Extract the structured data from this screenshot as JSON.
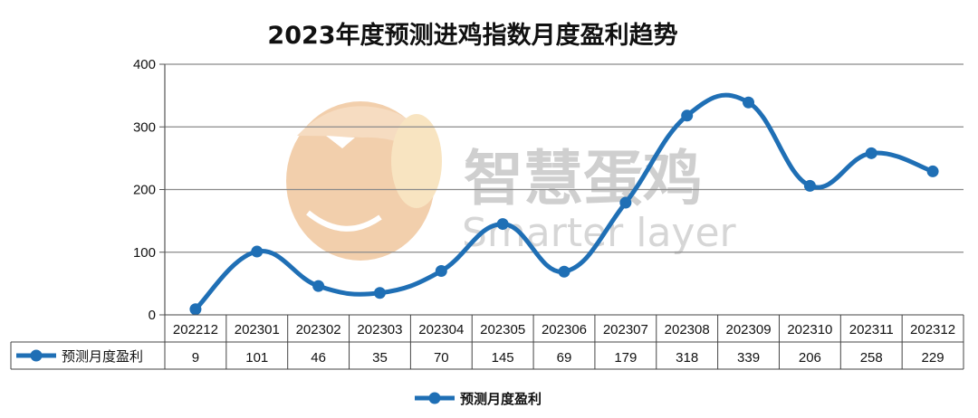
{
  "chart_data": {
    "type": "line",
    "title": "2023年度预测进鸡指数月度盈利趋势",
    "categories": [
      "202212",
      "202301",
      "202302",
      "202303",
      "202304",
      "202305",
      "202306",
      "202307",
      "202308",
      "202309",
      "202310",
      "202311",
      "202312"
    ],
    "series": [
      {
        "name": "预测月度盈利",
        "values": [
          9,
          101,
          46,
          35,
          70,
          145,
          69,
          179,
          318,
          339,
          206,
          258,
          229
        ]
      }
    ],
    "y_ticks": [
      0,
      100,
      200,
      300,
      400
    ],
    "ylim": [
      0,
      400
    ],
    "grid": true,
    "legend": "bottom-center",
    "data_table": true,
    "smooth": true,
    "line_color": "#1f6fb5"
  },
  "watermark": {
    "text": "智慧蛋鸡",
    "subtext": "Smarter layer"
  }
}
